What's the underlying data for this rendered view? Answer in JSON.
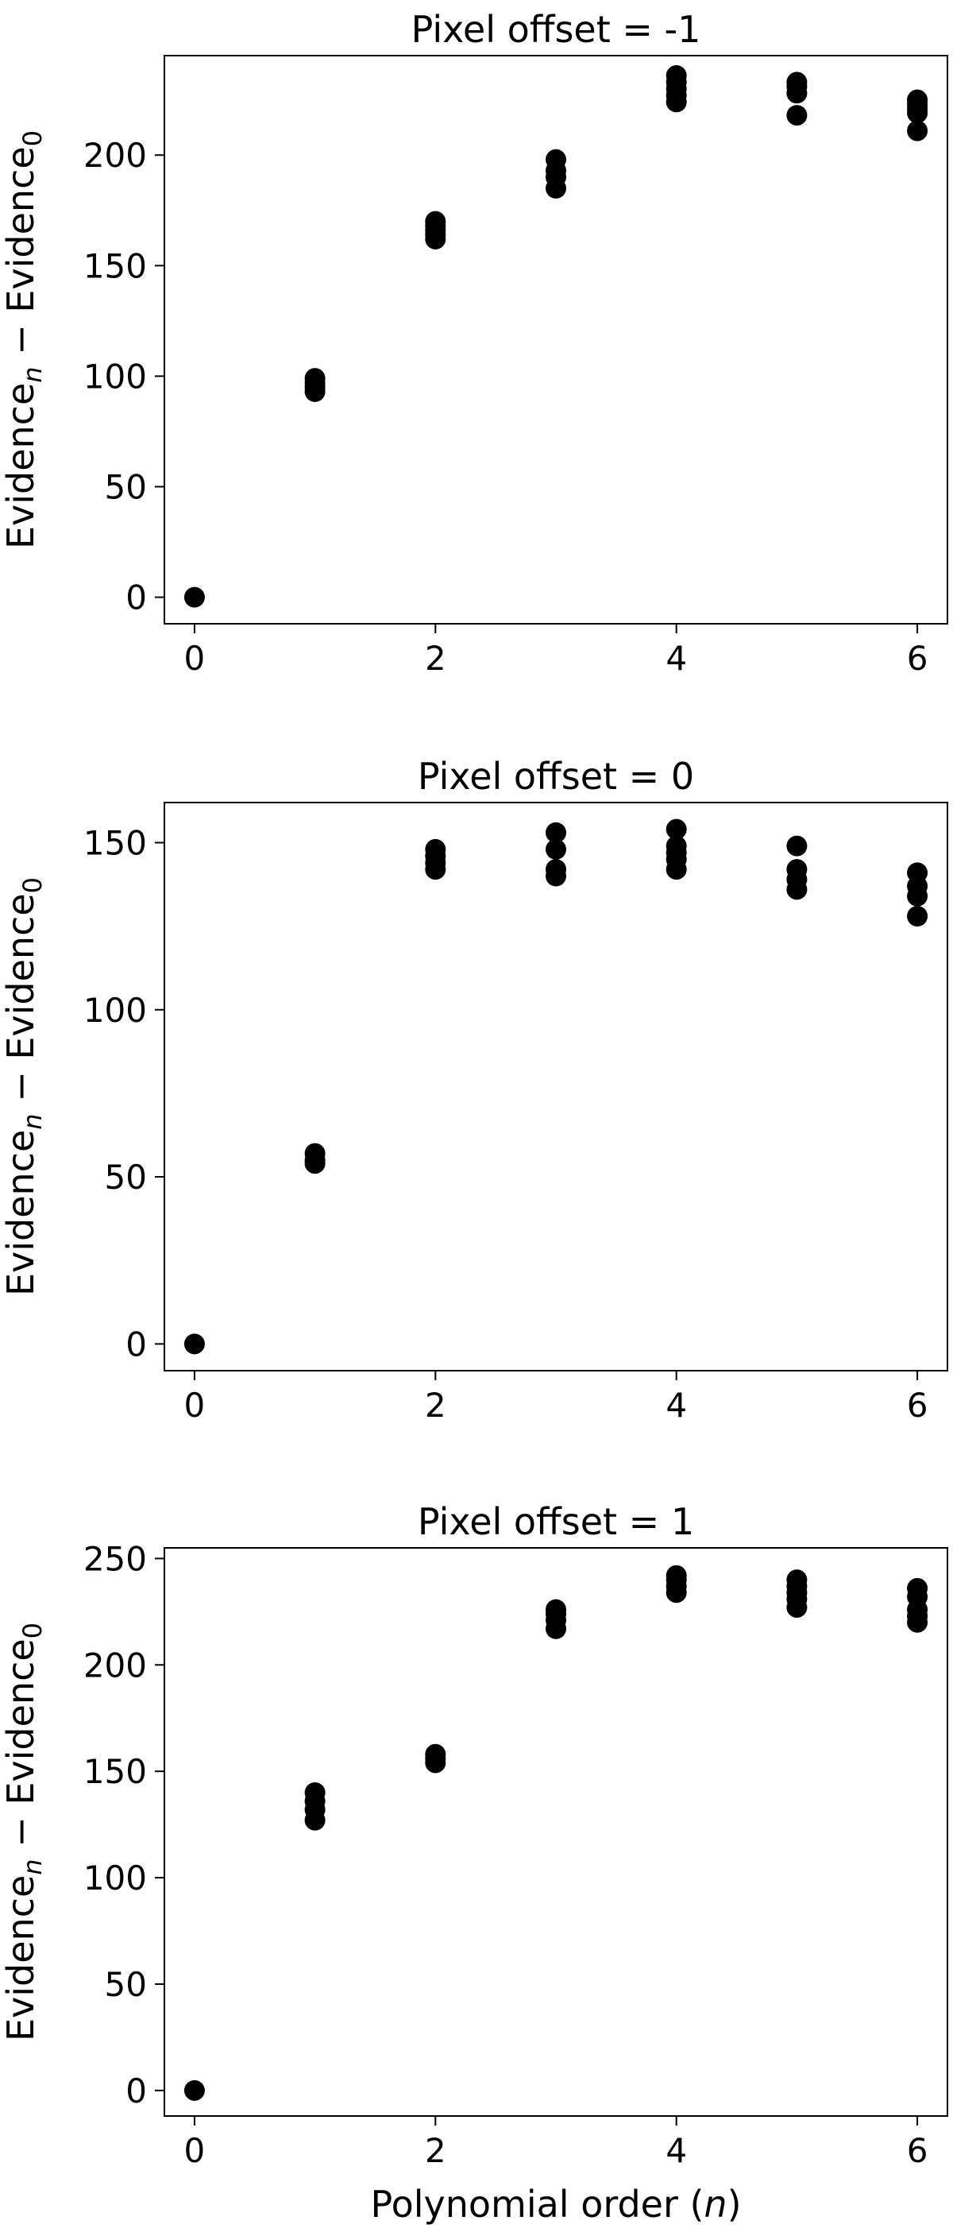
{
  "chart_data": [
    {
      "type": "scatter",
      "title": "Pixel offset = -1",
      "xlabel": "",
      "ylabel_main": "Evidence",
      "ylabel_sub_n": "n",
      "ylabel_sep": " − Evidence",
      "ylabel_sub_0": "0",
      "xlim": [
        -0.25,
        6.25
      ],
      "ylim": [
        -12,
        245
      ],
      "xticks": [
        0,
        2,
        4,
        6
      ],
      "yticks": [
        0,
        50,
        100,
        150,
        200
      ],
      "grid": false,
      "legend": "none",
      "series": [
        {
          "x": [
            0,
            1,
            1,
            1,
            1,
            2,
            2,
            2,
            2,
            2,
            3,
            3,
            3,
            3,
            4,
            4,
            4,
            4,
            4,
            5,
            5,
            5,
            5,
            6,
            6,
            6,
            6,
            6
          ],
          "y": [
            0,
            93,
            95,
            97,
            99,
            162,
            164,
            166,
            168,
            170,
            185,
            190,
            193,
            198,
            224,
            227,
            230,
            233,
            236,
            218,
            228,
            231,
            233,
            211,
            219,
            221,
            223,
            225
          ]
        }
      ]
    },
    {
      "type": "scatter",
      "title": "Pixel offset = 0",
      "xlabel": "",
      "ylabel_main": "Evidence",
      "ylabel_sub_n": "n",
      "ylabel_sep": " − Evidence",
      "ylabel_sub_0": "0",
      "xlim": [
        -0.25,
        6.25
      ],
      "ylim": [
        -8,
        162
      ],
      "xticks": [
        0,
        2,
        4,
        6
      ],
      "yticks": [
        0,
        50,
        100,
        150
      ],
      "grid": false,
      "legend": "none",
      "series": [
        {
          "x": [
            0,
            1,
            1,
            1,
            2,
            2,
            2,
            2,
            3,
            3,
            3,
            3,
            4,
            4,
            4,
            4,
            4,
            5,
            5,
            5,
            5,
            6,
            6,
            6,
            6
          ],
          "y": [
            0,
            54,
            55,
            57,
            142,
            144,
            146,
            148,
            140,
            142,
            148,
            153,
            142,
            145,
            147,
            149,
            154,
            136,
            139,
            142,
            149,
            128,
            134,
            137,
            141
          ]
        }
      ]
    },
    {
      "type": "scatter",
      "title": "Pixel offset = 1",
      "xlabel": "Polynomial order",
      "xlabel_var": "n",
      "ylabel_main": "Evidence",
      "ylabel_sub_n": "n",
      "ylabel_sep": " − Evidence",
      "ylabel_sub_0": "0",
      "xlim": [
        -0.25,
        6.25
      ],
      "ylim": [
        -12,
        255
      ],
      "xticks": [
        0,
        2,
        4,
        6
      ],
      "yticks": [
        0,
        50,
        100,
        150,
        200,
        250
      ],
      "grid": false,
      "legend": "none",
      "series": [
        {
          "x": [
            0,
            1,
            1,
            1,
            1,
            2,
            2,
            2,
            3,
            3,
            3,
            3,
            4,
            4,
            4,
            4,
            5,
            5,
            5,
            5,
            5,
            6,
            6,
            6,
            6,
            6
          ],
          "y": [
            0,
            127,
            132,
            136,
            140,
            154,
            156,
            158,
            217,
            221,
            224,
            226,
            234,
            237,
            240,
            242,
            227,
            231,
            234,
            237,
            240,
            220,
            223,
            226,
            232,
            236
          ]
        }
      ]
    }
  ]
}
